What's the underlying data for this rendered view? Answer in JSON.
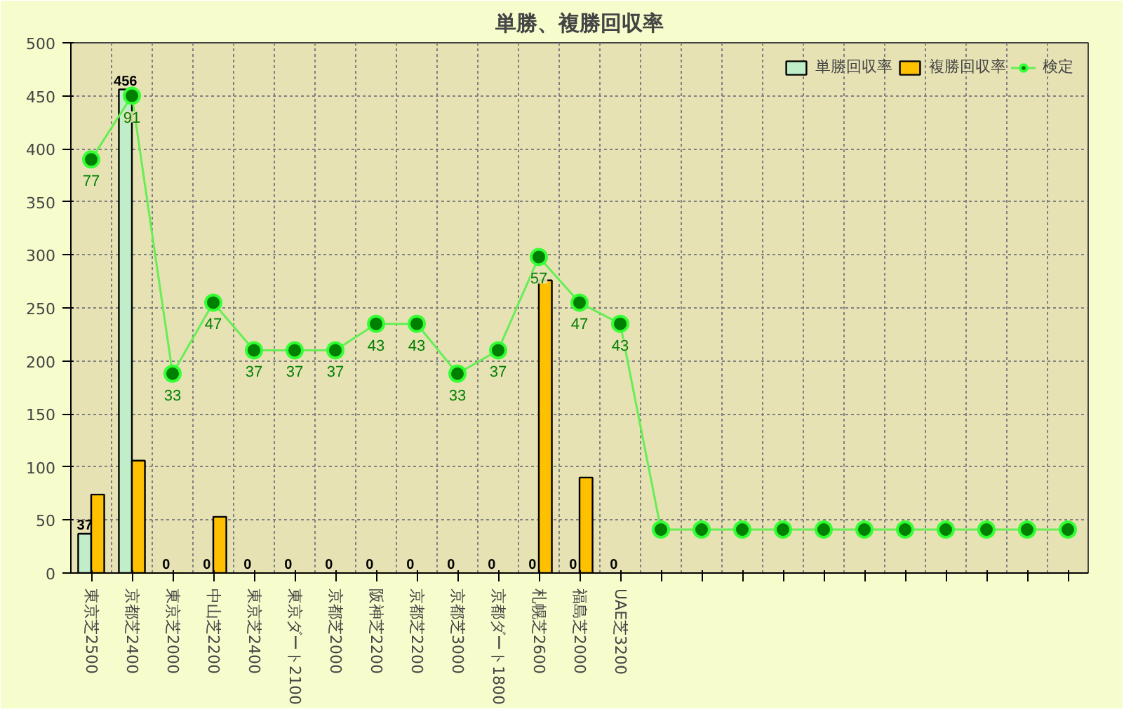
{
  "chart_data": {
    "type": "bar",
    "title": "単勝、複勝回収率",
    "categories": [
      "東京芝2500",
      "京都芝2400",
      "東京芝2000",
      "中山芝2200",
      "東京芝2400",
      "東京ダート2100",
      "京都芝2000",
      "阪神芝2200",
      "京都芝2200",
      "京都芝3000",
      "京都ダート1800",
      "札幌芝2600",
      "福島芝2000",
      "UAE芝3200",
      null,
      null,
      null,
      null,
      null,
      null,
      null,
      null,
      null,
      null,
      null
    ],
    "series": [
      {
        "name": "単勝回収率",
        "color": "#c0eec8",
        "values": [
          37,
          456,
          0,
          0,
          0,
          0,
          0,
          0,
          0,
          0,
          0,
          0,
          0,
          0,
          null,
          null,
          null,
          null,
          null,
          null,
          null,
          null,
          null,
          null,
          null
        ],
        "value_labels": [
          "37",
          "456",
          "0",
          "0",
          "0",
          "0",
          "0",
          "0",
          "0",
          "0",
          "0",
          "0",
          "0",
          "0",
          null,
          null,
          null,
          null,
          null,
          null,
          null,
          null,
          null,
          null,
          null
        ]
      },
      {
        "name": "複勝回収率",
        "color": "#ffc000",
        "values": [
          74,
          106,
          0,
          53,
          0,
          0,
          0,
          0,
          0,
          0,
          0,
          276,
          90,
          0,
          null,
          null,
          null,
          null,
          null,
          null,
          null,
          null,
          null,
          null,
          null
        ]
      },
      {
        "name": "検定",
        "type": "line",
        "color": "#008000",
        "values": [
          390,
          450,
          188,
          255,
          210,
          210,
          210,
          235,
          235,
          188,
          210,
          298,
          255,
          235,
          41,
          41,
          41,
          41,
          41,
          41,
          41,
          41,
          41,
          41,
          41
        ]
      }
    ],
    "annotations": [
      {
        "text": "77",
        "x": "東京芝2500",
        "y": 390
      },
      {
        "text": "91",
        "x": "京都芝2400",
        "y": 450
      },
      {
        "text": "33",
        "x": "東京芝2000",
        "y": 188
      },
      {
        "text": "47",
        "x": "中山芝2200",
        "y": 255
      },
      {
        "text": "37",
        "x": "東京芝2400",
        "y": 210
      },
      {
        "text": "37",
        "x": "東京ダート2100",
        "y": 210
      },
      {
        "text": "37",
        "x": "京都芝2000",
        "y": 210
      },
      {
        "text": "43",
        "x": "阪神芝2200",
        "y": 235
      },
      {
        "text": "43",
        "x": "京都芝2200",
        "y": 235
      },
      {
        "text": "33",
        "x": "京都芝3000",
        "y": 188
      },
      {
        "text": "37",
        "x": "京都ダート1800",
        "y": 210
      },
      {
        "text": "57",
        "x": "札幌芝2600",
        "y": 298
      },
      {
        "text": "47",
        "x": "福島芝2000",
        "y": 255
      },
      {
        "text": "43",
        "x": "UAE芝3200",
        "y": 235
      }
    ],
    "ylim": [
      0,
      500
    ],
    "yticks": [
      0,
      50,
      100,
      150,
      200,
      250,
      300,
      350,
      400,
      450,
      500
    ],
    "grid": true,
    "legend": "top right",
    "marker": "circle"
  }
}
